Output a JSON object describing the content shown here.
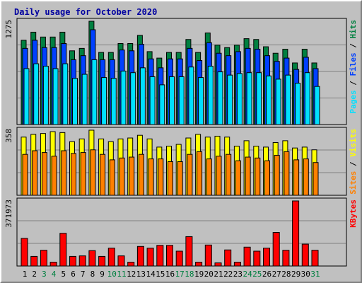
{
  "chart_data": {
    "type": "bar",
    "title": "Daily usage for October 2020",
    "days": [
      "1",
      "2",
      "3",
      "4",
      "5",
      "6",
      "7",
      "8",
      "9",
      "10",
      "11",
      "12",
      "13",
      "14",
      "15",
      "16",
      "17",
      "18",
      "19",
      "20",
      "21",
      "22",
      "23",
      "24",
      "25",
      "26",
      "27",
      "28",
      "29",
      "30",
      "31"
    ],
    "weekend_days": [
      "3",
      "4",
      "10",
      "11",
      "17",
      "18",
      "24",
      "25",
      "31"
    ],
    "colors": {
      "hits": "#008040",
      "files": "#0040ff",
      "pages": "#00e0ff",
      "visits": "#ffff00",
      "sites": "#ff8000",
      "kbytes": "#ff0000",
      "weekday_label": "#000000",
      "weekend_label": "#008040",
      "title": "#0000a0"
    },
    "panels": [
      {
        "id": "top",
        "ymax_label": "1275",
        "ymax": 1275,
        "legend": [
          {
            "text": "Pages",
            "color": "#00e0ff"
          },
          {
            "text": " / ",
            "color": "#000000"
          },
          {
            "text": "Files",
            "color": "#0040ff"
          },
          {
            "text": " / ",
            "color": "#000000"
          },
          {
            "text": "Hits",
            "color": "#008040"
          }
        ],
        "series": [
          {
            "name": "Hits",
            "color": "#008040",
            "values": [
              1040,
              1140,
              1080,
              1080,
              1140,
              910,
              940,
              1275,
              890,
              890,
              1000,
              1000,
              1100,
              900,
              820,
              890,
              890,
              1050,
              890,
              1130,
              980,
              950,
              980,
              1060,
              1050,
              960,
              880,
              930,
              760,
              930,
              760
            ]
          },
          {
            "name": "Files",
            "color": "#0040ff",
            "values": [
              940,
              1040,
              950,
              950,
              1000,
              800,
              850,
              1170,
              800,
              800,
              920,
              910,
              990,
              810,
              700,
              810,
              810,
              940,
              790,
              1010,
              880,
              850,
              900,
              940,
              930,
              850,
              780,
              820,
              680,
              830,
              690
            ]
          },
          {
            "name": "Pages",
            "color": "#00e0ff",
            "values": [
              690,
              750,
              720,
              690,
              750,
              570,
              620,
              800,
              580,
              570,
              660,
              640,
              700,
              590,
              490,
              590,
              590,
              710,
              580,
              720,
              650,
              610,
              630,
              640,
              640,
              600,
              560,
              610,
              510,
              640,
              470
            ]
          }
        ]
      },
      {
        "id": "middle",
        "ymax_label": "358",
        "ymax": 358,
        "legend": [
          {
            "text": "Sites",
            "color": "#ff8000"
          },
          {
            "text": " / ",
            "color": "#000000"
          },
          {
            "text": "Visits",
            "color": "#ffff00"
          }
        ],
        "series": [
          {
            "name": "Visits",
            "color": "#ffff00",
            "values": [
              320,
              335,
              340,
              350,
              345,
              295,
              310,
              358,
              310,
              295,
              310,
              315,
              330,
              310,
              265,
              270,
              280,
              315,
              335,
              320,
              325,
              320,
              270,
              300,
              270,
              265,
              290,
              300,
              260,
              265,
              250
            ]
          },
          {
            "name": "Sites",
            "color": "#ff8000",
            "values": [
              225,
              245,
              235,
              215,
              245,
              230,
              235,
              250,
              225,
              195,
              205,
              210,
              225,
              200,
              200,
              185,
              185,
              225,
              240,
              200,
              215,
              225,
              190,
              210,
              205,
              190,
              220,
              240,
              195,
              200,
              180
            ]
          }
        ]
      },
      {
        "id": "bottom",
        "ymax_label": "371973",
        "ymax": 371973,
        "legend": [
          {
            "text": "KBytes",
            "color": "#ff0000"
          }
        ],
        "series": [
          {
            "name": "KBytes",
            "color": "#ff0000",
            "values": [
              158000,
              55000,
              90000,
              22000,
              187000,
              55000,
              58000,
              88000,
              55000,
              102000,
              58000,
              22000,
              112000,
              102000,
              118000,
              118000,
              85000,
              168000,
              22000,
              120000,
              18000,
              92000,
              22000,
              108000,
              85000,
              102000,
              192000,
              90000,
              371973,
              125000,
              90000
            ]
          }
        ]
      }
    ]
  }
}
